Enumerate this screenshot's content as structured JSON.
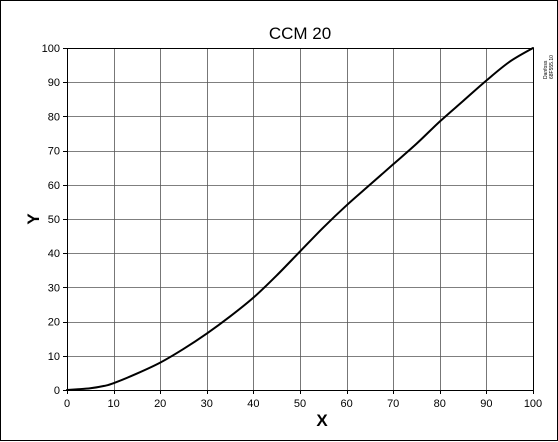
{
  "chart_data": {
    "type": "line",
    "title": "CCM 20",
    "xlabel": "X",
    "ylabel": "Y",
    "xlim": [
      0,
      100
    ],
    "ylim": [
      0,
      100
    ],
    "xticks": [
      0,
      10,
      20,
      30,
      40,
      50,
      60,
      70,
      80,
      90,
      100
    ],
    "yticks": [
      0,
      10,
      20,
      30,
      40,
      50,
      60,
      70,
      80,
      90,
      100
    ],
    "grid": true,
    "legend": "none",
    "series": [
      {
        "x": [
          0,
          2,
          5,
          8,
          10,
          15,
          20,
          25,
          30,
          35,
          40,
          45,
          50,
          55,
          60,
          65,
          70,
          75,
          80,
          85,
          90,
          95,
          100
        ],
        "y": [
          0,
          0.2,
          0.5,
          1.2,
          2,
          4.8,
          8,
          12,
          16.5,
          21.5,
          27,
          33.5,
          40.5,
          47.5,
          54,
          60,
          66,
          72,
          78.5,
          84.5,
          90.5,
          96,
          100
        ],
        "color": "#000000"
      }
    ],
    "annotation": {
      "line1": "Danfoss",
      "line2": "68F555.10"
    }
  }
}
